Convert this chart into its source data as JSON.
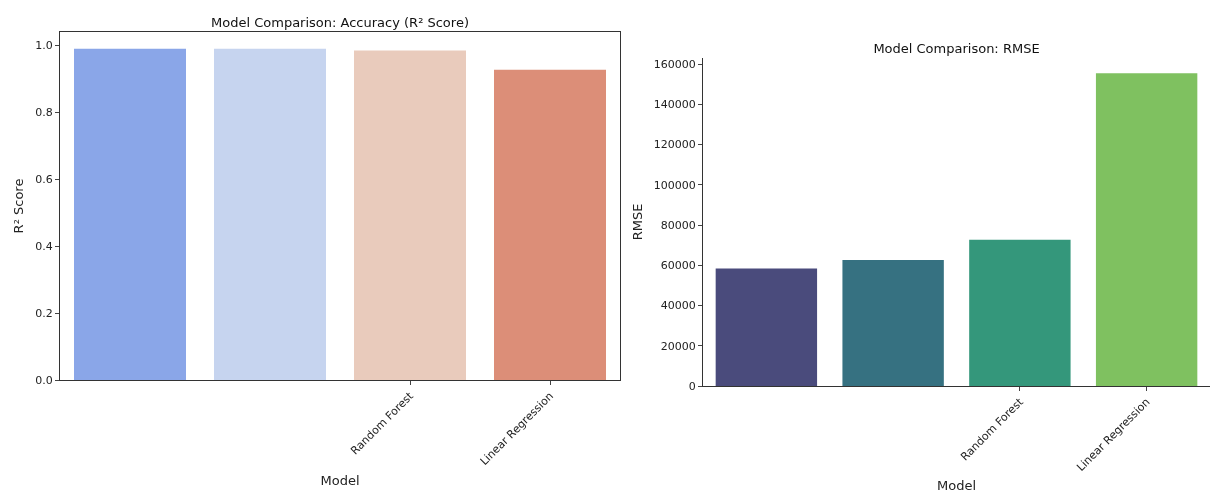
{
  "chart_data": [
    {
      "type": "bar",
      "title": "Model Comparison: Accuracy (R² Score)",
      "xlabel": "Model",
      "ylabel": "R² Score",
      "categories": [
        null,
        null,
        "Random Forest",
        "Linear Regression"
      ],
      "values": [
        0.99,
        0.99,
        0.985,
        0.927
      ],
      "colors": [
        "#8aa6e8",
        "#c6d4ef",
        "#e9cbbc",
        "#dc8e78"
      ],
      "ylim": [
        0,
        1.04
      ],
      "yticks": [
        {
          "value": 0,
          "label": "0.0"
        },
        0.2,
        0.4,
        0.6,
        0.8,
        {
          "value": 1,
          "label": "1.0"
        }
      ],
      "grid": false
    },
    {
      "type": "bar",
      "title": "Model Comparison: RMSE",
      "xlabel": "Model",
      "ylabel": "RMSE",
      "categories": [
        null,
        null,
        "Random Forest",
        "Linear Regression"
      ],
      "values": [
        58400,
        62600,
        72700,
        155400
      ],
      "colors": [
        "#4a4b7c",
        "#367181",
        "#34977b",
        "#7fc160"
      ],
      "ylim": [
        0,
        163000
      ],
      "yticks": [
        0,
        20000,
        40000,
        60000,
        80000,
        100000,
        120000,
        140000,
        160000
      ],
      "grid": false
    }
  ]
}
